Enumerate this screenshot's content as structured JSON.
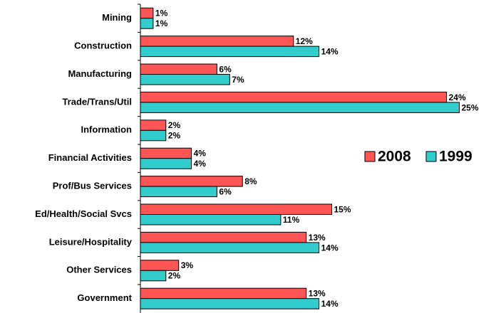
{
  "chart_data": {
    "type": "bar",
    "orientation": "horizontal",
    "categories": [
      "Mining",
      "Construction",
      "Manufacturing",
      "Trade/Trans/Util",
      "Information",
      "Financial Activities",
      "Prof/Bus Services",
      "Ed/Health/Social Svcs",
      "Leisure/Hospitality",
      "Other Services",
      "Government"
    ],
    "series": [
      {
        "name": "2008",
        "color": "#ff5555",
        "values": [
          1,
          12,
          6,
          24,
          2,
          4,
          8,
          15,
          13,
          3,
          13
        ],
        "value_labels": [
          "1%",
          "12%",
          "6%",
          "24%",
          "2%",
          "4%",
          "8%",
          "15%",
          "13%",
          "3%",
          "13%"
        ]
      },
      {
        "name": "1999",
        "color": "#33cccc",
        "values": [
          1,
          14,
          7,
          25,
          2,
          4,
          6,
          11,
          14,
          2,
          14
        ],
        "value_labels": [
          "1%",
          "14%",
          "7%",
          "25%",
          "2%",
          "4%",
          "6%",
          "11%",
          "14%",
          "2%",
          "14%"
        ]
      }
    ],
    "legend": "right"
  }
}
